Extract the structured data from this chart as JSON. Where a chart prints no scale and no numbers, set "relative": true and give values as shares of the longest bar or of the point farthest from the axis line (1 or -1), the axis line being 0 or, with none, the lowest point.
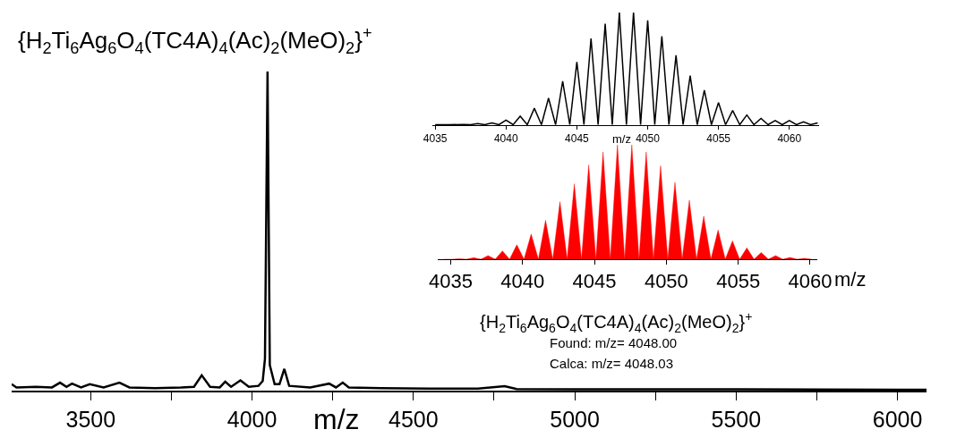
{
  "chart_data": [
    {
      "type": "line",
      "title": "{H$_{2}$Ti$_{6}$Ag$_{6}$O$_{4}$(TC4A)$_{4}$(Ac)$_{2}$(MeO)$_{2}$}$^{+}$",
      "xlabel": "m/z",
      "relative": true,
      "xlim": [
        3255,
        6090
      ],
      "xticks": [
        3500,
        {
          "value": 3750,
          "label": null
        },
        4000,
        {
          "value": 4250,
          "label": null
        },
        4500,
        {
          "value": 4750,
          "label": null
        },
        5000,
        {
          "value": 5250,
          "label": null
        },
        5500,
        {
          "value": 5750,
          "label": null
        },
        6000
      ],
      "series": [
        {
          "color": "#000000",
          "x": [
            3255,
            3270,
            3330,
            3380,
            3405,
            3425,
            3442,
            3470,
            3497,
            3540,
            3589,
            3620,
            3700,
            3780,
            3820,
            3844,
            3870,
            3900,
            3917,
            3935,
            3964,
            3990,
            4020,
            4033,
            4040,
            4048,
            4055,
            4070,
            4085,
            4100,
            4115,
            4180,
            4239,
            4260,
            4281,
            4300,
            4400,
            4550,
            4700,
            4783,
            4820,
            5000,
            5500,
            6000,
            6090
          ],
          "values": [
            0.02,
            0.01,
            0.012,
            0.01,
            0.025,
            0.012,
            0.022,
            0.01,
            0.02,
            0.01,
            0.025,
            0.01,
            0.008,
            0.01,
            0.012,
            0.048,
            0.012,
            0.01,
            0.028,
            0.012,
            0.032,
            0.012,
            0.015,
            0.03,
            0.1,
            1,
            0.08,
            0.02,
            0.02,
            0.068,
            0.015,
            0.01,
            0.022,
            0.01,
            0.025,
            0.01,
            0.008,
            0.006,
            0.006,
            0.014,
            0.005,
            0.004,
            0.004,
            0.003,
            0.003
          ]
        }
      ],
      "marker": "none"
    },
    {
      "type": "line",
      "xlabel": "m/z",
      "relative": true,
      "xlim": [
        4034.8,
        4062.1
      ],
      "xticks": [
        4035,
        4040,
        4045,
        4050,
        4055,
        4060
      ],
      "series": [
        {
          "color": "#000000",
          "x": [
            4035,
            4036,
            4037,
            4037.5,
            4038,
            4038.5,
            4039,
            4039.5,
            4040,
            4040.5,
            4041,
            4041.5,
            4042,
            4042.5,
            4043,
            4043.5,
            4044,
            4044.5,
            4045,
            4045.5,
            4046,
            4046.5,
            4047,
            4047.5,
            4048,
            4048.5,
            4049,
            4049.5,
            4050,
            4050.5,
            4051,
            4051.5,
            4052,
            4052.5,
            4053,
            4053.5,
            4054,
            4054.5,
            4055,
            4055.5,
            4056,
            4056.5,
            4057,
            4057.5,
            4058,
            4058.5,
            4059,
            4059.5,
            4060,
            4060.5,
            4061,
            4061.5,
            4062
          ],
          "values": [
            0.003,
            0.004,
            0.006,
            0.004,
            0.013,
            0.004,
            0.02,
            0.004,
            0.045,
            0.004,
            0.08,
            0.004,
            0.15,
            0.004,
            0.24,
            0.004,
            0.39,
            0.004,
            0.56,
            0.004,
            0.77,
            0.004,
            0.9,
            0.004,
            1,
            0.004,
            1,
            0.004,
            0.93,
            0.004,
            0.79,
            0.004,
            0.62,
            0.004,
            0.44,
            0.004,
            0.31,
            0.004,
            0.2,
            0.004,
            0.13,
            0.004,
            0.09,
            0.004,
            0.06,
            0.004,
            0.04,
            0.004,
            0.04,
            0.004,
            0.03,
            0.004,
            0.02
          ]
        }
      ],
      "marker": "none"
    },
    {
      "type": "area",
      "xlabel": "m/z",
      "relative": true,
      "xlim": [
        4034.1,
        4060.5
      ],
      "xticks": [
        4035,
        4040,
        4045,
        4050,
        4055,
        4060
      ],
      "annotations": [
        "{H$_{2}$Ti$_{6}$Ag$_{6}$O$_{4}$(TC4A)$_{4}$(Ac)$_{2}$(MeO)$_{2}$}$^{+}$",
        "Found: m/z= 4048.00",
        "Calca: m/z= 4048.03"
      ],
      "series": [
        {
          "color": "#ff0000",
          "x": [
            4034.5,
            4035.1,
            4035.6,
            4036.1,
            4036.6,
            4037.1,
            4037.6,
            4038.1,
            4038.6,
            4039.1,
            4039.6,
            4040.1,
            4040.6,
            4041.1,
            4041.6,
            4042.1,
            4042.6,
            4043.1,
            4043.6,
            4044.1,
            4044.6,
            4045.1,
            4045.6,
            4046.1,
            4046.6,
            4047.1,
            4047.6,
            4048.1,
            4048.6,
            4049.1,
            4049.6,
            4050.1,
            4050.6,
            4051.1,
            4051.6,
            4052.1,
            4052.6,
            4053.1,
            4053.6,
            4054.1,
            4054.6,
            4055.1,
            4055.6,
            4056.1,
            4056.6,
            4057.1,
            4057.6,
            4058.1,
            4058.6,
            4059.1,
            4059.6,
            4060.1
          ],
          "values": [
            0,
            0,
            0.003,
            0,
            0.013,
            0,
            0.032,
            0,
            0.073,
            0,
            0.126,
            0,
            0.22,
            0,
            0.341,
            0,
            0.503,
            0,
            0.659,
            0,
            0.825,
            0,
            0.938,
            0,
            1,
            0,
            1,
            0,
            0.938,
            0,
            0.817,
            0,
            0.672,
            0,
            0.516,
            0,
            0.376,
            0,
            0.255,
            0,
            0.161,
            0,
            0.099,
            0,
            0.059,
            0,
            0.032,
            0,
            0.016,
            0,
            0.008,
            0
          ]
        }
      ],
      "marker": "none"
    }
  ]
}
